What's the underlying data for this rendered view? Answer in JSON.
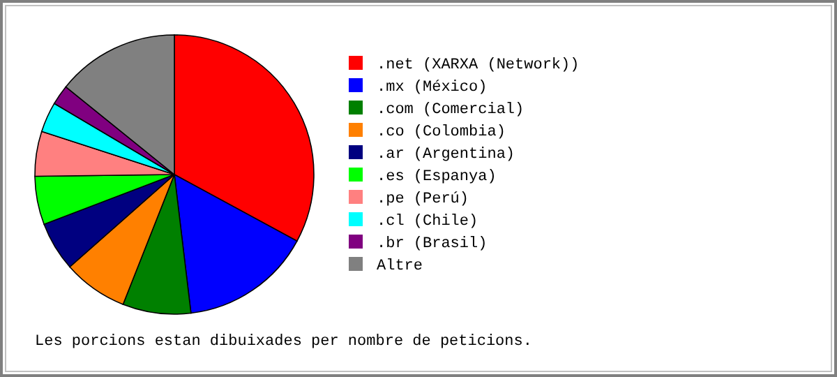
{
  "chart_data": {
    "type": "pie",
    "categories": [
      ".net (XARXA (Network))",
      ".mx (México)",
      ".com (Comercial)",
      ".co (Colombia)",
      ".ar (Argentina)",
      ".es (Espanya)",
      ".pe (Perú)",
      ".cl (Chile)",
      ".br (Brasil)",
      "Altre"
    ],
    "values": [
      32.9,
      15.2,
      7.9,
      7.5,
      5.7,
      5.6,
      5.2,
      3.5,
      2.3,
      14.2
    ],
    "colors": [
      "#ff0000",
      "#0000ff",
      "#008000",
      "#ff8000",
      "#000080",
      "#00ff00",
      "#ff8080",
      "#00ffff",
      "#800080",
      "#808080"
    ],
    "legend": "right",
    "annotations": [
      "Les porcions estan dibuixades per nombre de peticions."
    ]
  }
}
